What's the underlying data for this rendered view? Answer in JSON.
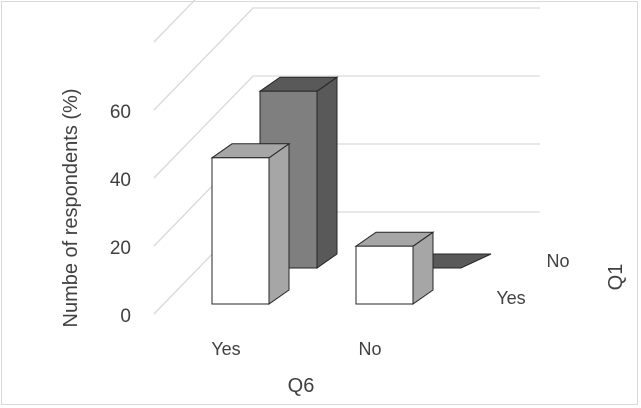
{
  "chart_data": {
    "type": "bar",
    "title": "",
    "ylabel": "Numbe of respondents (%)",
    "xlabel": "Q6",
    "zlabel": "Q1",
    "ylim": [
      0,
      70
    ],
    "yticks": [
      "0",
      "20",
      "40",
      "60"
    ],
    "categories": [
      "Yes",
      "No"
    ],
    "series": [
      {
        "name": "Yes",
        "values": [
          43,
          17
        ]
      },
      {
        "name": "No",
        "values": [
          52,
          0
        ]
      }
    ],
    "grid": true,
    "legend": "none",
    "colors": {
      "Yes_front": "#ffffff",
      "Yes_side": "#a6a6a6",
      "No_front": "#7f7f7f",
      "No_side": "#595959",
      "No_top": "#595959",
      "gridline": "#d9d9d9",
      "text": "#404040"
    }
  }
}
